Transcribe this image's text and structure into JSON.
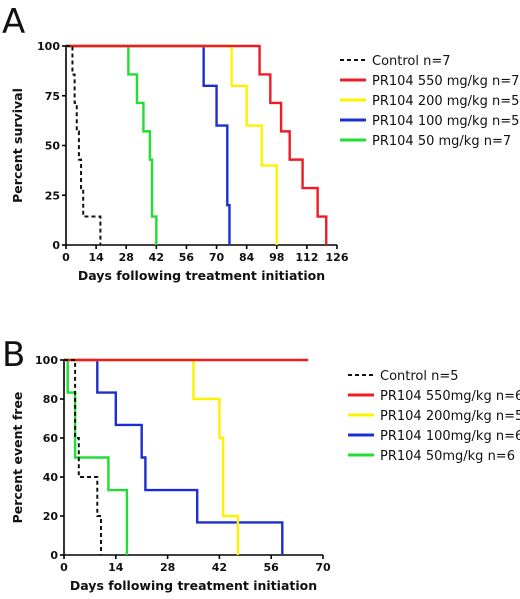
{
  "chart_data": [
    {
      "type": "line",
      "panel": "A",
      "xlabel": "Days following treatment initiation",
      "ylabel": "Percent survival",
      "xlim": [
        0,
        126
      ],
      "ylim": [
        0,
        100
      ],
      "xticks": [
        0,
        14,
        28,
        42,
        56,
        70,
        84,
        98,
        112,
        126
      ],
      "yticks": [
        0,
        25,
        50,
        75,
        100
      ],
      "legend_position": "right",
      "series": [
        {
          "name": "Control n=7",
          "color": "#111111",
          "dashed": true,
          "x": [
            0,
            3,
            4,
            5,
            6,
            7,
            8,
            13,
            16
          ],
          "y": [
            100,
            85.7,
            71.4,
            57.1,
            42.9,
            28.6,
            14.3,
            14.3,
            0
          ]
        },
        {
          "name": "PR104 550 mg/kg n=7",
          "color": "#ee1c25",
          "dashed": false,
          "x": [
            0,
            90,
            95,
            100,
            104,
            110,
            117,
            121
          ],
          "y": [
            100,
            85.7,
            71.4,
            57.1,
            42.9,
            28.6,
            14.3,
            0
          ]
        },
        {
          "name": "PR104 200 mg/kg n=5",
          "color": "#fff200",
          "dashed": false,
          "x": [
            0,
            77,
            84,
            91,
            98
          ],
          "y": [
            100,
            80,
            60,
            40,
            0
          ]
        },
        {
          "name": "PR104 100 mg/kg n=5",
          "color": "#1c2fce",
          "dashed": false,
          "x": [
            0,
            64,
            70,
            75,
            76
          ],
          "y": [
            100,
            80,
            60,
            20,
            0
          ]
        },
        {
          "name": "PR104 50 mg/kg n=7",
          "color": "#22dd33",
          "dashed": false,
          "x": [
            0,
            29,
            33,
            36,
            39,
            40,
            42
          ],
          "y": [
            100,
            85.7,
            71.4,
            57.1,
            42.9,
            14.3,
            0
          ]
        }
      ]
    },
    {
      "type": "line",
      "panel": "B",
      "xlabel": "Days following treatment initiation",
      "ylabel": "Percent event free",
      "xlim": [
        0,
        70
      ],
      "ylim": [
        0,
        100
      ],
      "xticks": [
        0,
        14,
        28,
        42,
        56,
        70
      ],
      "yticks": [
        0,
        20,
        40,
        60,
        80,
        100
      ],
      "legend_position": "right",
      "series": [
        {
          "name": "Control n=5",
          "color": "#111111",
          "dashed": true,
          "x": [
            0,
            3,
            4,
            7,
            9,
            10
          ],
          "y": [
            100,
            60,
            40,
            40,
            20,
            0
          ]
        },
        {
          "name": "PR104 550mg/kg n=6",
          "color": "#ee1c25",
          "dashed": false,
          "x": [
            0,
            66
          ],
          "y": [
            100,
            100
          ]
        },
        {
          "name": "PR104 200mg/kg n=5",
          "color": "#fff200",
          "dashed": false,
          "x": [
            0,
            35,
            42,
            43,
            45,
            47
          ],
          "y": [
            100,
            80,
            60,
            20,
            20,
            0
          ]
        },
        {
          "name": "PR104 100mg/kg n=6",
          "color": "#1c2fce",
          "dashed": false,
          "x": [
            0,
            9,
            14,
            21,
            22,
            36,
            59
          ],
          "y": [
            100,
            83.3,
            66.7,
            50,
            33.3,
            16.7,
            0
          ]
        },
        {
          "name": "PR104 50mg/kg n=6",
          "color": "#22dd33",
          "dashed": false,
          "x": [
            0,
            1,
            3,
            6,
            12,
            17
          ],
          "y": [
            100,
            83.3,
            50,
            50,
            33.3,
            0
          ]
        }
      ]
    }
  ]
}
